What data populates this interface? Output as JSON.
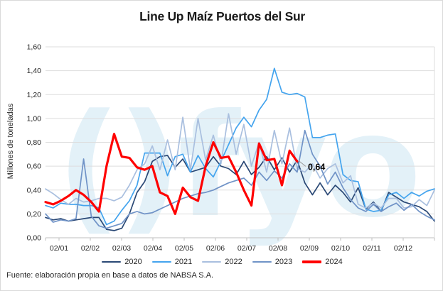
{
  "title": "Line Up Maíz Puertos del Sur",
  "footer": "Fuente: elaboración propia en base a datos de NABSA S.A.",
  "watermark_text": "()fyo",
  "annotation": {
    "text": "0,64",
    "series": "2024"
  },
  "colors": {
    "grid": "#dddddd",
    "axis": "#bfbfbf",
    "text": "#262626",
    "title_text": "#1a1a1a",
    "watermark": "#e3f1f8",
    "annotation_text": "#000000",
    "leader_line": "#999999"
  },
  "chart_data": {
    "type": "line",
    "title": "Line Up Maíz Puertos del Sur",
    "xlabel": "",
    "ylabel": "Millones de toneladas",
    "ylim": [
      0,
      1.6
    ],
    "grid": true,
    "legend_position": "bottom",
    "x_unit": "weekly points, labelled monthly (day 02 of each month)",
    "x_tick_labels": [
      "02/01",
      "02/02",
      "02/03",
      "02/04",
      "02/05",
      "02/06",
      "02/07",
      "02/08",
      "02/09",
      "02/10",
      "02/11",
      "02/12"
    ],
    "y_tick_labels": [
      "0,00",
      "0,20",
      "0,40",
      "0,60",
      "0,80",
      "1,00",
      "1,20",
      "1,40",
      "1,60"
    ],
    "y_tick_values": [
      0,
      0.2,
      0.4,
      0.6,
      0.8,
      1.0,
      1.2,
      1.4,
      1.6
    ],
    "weeks_per_year": 52,
    "series": [
      {
        "name": "2020",
        "color": "#2a4875",
        "width": 1.7,
        "values": [
          0.17,
          0.15,
          0.16,
          0.14,
          0.15,
          0.16,
          0.17,
          0.17,
          0.07,
          0.06,
          0.08,
          0.2,
          0.38,
          0.47,
          0.64,
          0.68,
          0.69,
          0.59,
          0.66,
          0.55,
          0.57,
          0.59,
          0.68,
          0.6,
          0.58,
          0.53,
          0.64,
          0.53,
          0.59,
          0.68,
          0.57,
          0.67,
          0.55,
          0.65,
          0.46,
          0.36,
          0.46,
          0.36,
          0.44,
          0.38,
          0.3,
          0.42,
          0.24,
          0.3,
          0.22,
          0.38,
          0.34,
          0.3,
          0.28,
          0.26,
          0.22,
          0.14
        ]
      },
      {
        "name": "2021",
        "color": "#44a4ee",
        "width": 1.7,
        "values": [
          0.27,
          0.25,
          0.29,
          0.28,
          0.28,
          0.27,
          0.27,
          0.25,
          0.11,
          0.14,
          0.23,
          0.31,
          0.44,
          0.71,
          0.71,
          0.71,
          0.52,
          0.68,
          0.7,
          0.55,
          0.69,
          0.58,
          0.51,
          0.64,
          0.78,
          0.92,
          1.01,
          0.93,
          1.07,
          1.16,
          1.42,
          1.22,
          1.2,
          1.21,
          1.18,
          0.84,
          0.84,
          0.86,
          0.87,
          0.53,
          0.48,
          0.47,
          0.24,
          0.22,
          0.23,
          0.36,
          0.38,
          0.33,
          0.38,
          0.35,
          0.39,
          0.41
        ]
      },
      {
        "name": "2022",
        "color": "#a9bfdf",
        "width": 1.7,
        "values": [
          0.41,
          0.37,
          0.32,
          0.28,
          0.33,
          0.3,
          0.31,
          0.33,
          0.33,
          0.31,
          0.34,
          0.44,
          0.57,
          0.62,
          0.77,
          0.57,
          0.82,
          0.57,
          1.01,
          0.57,
          1.0,
          0.65,
          0.86,
          0.62,
          1.04,
          0.7,
          0.95,
          0.6,
          0.8,
          0.55,
          0.9,
          0.62,
          0.92,
          0.58,
          0.55,
          0.62,
          0.5,
          0.58,
          0.62,
          0.46,
          0.52,
          0.28,
          0.25,
          0.29,
          0.25,
          0.33,
          0.33,
          0.25,
          0.26,
          0.32,
          0.27,
          0.4
        ]
      },
      {
        "name": "2023",
        "color": "#7093c7",
        "width": 1.7,
        "values": [
          0.2,
          0.13,
          0.15,
          0.14,
          0.16,
          0.66,
          0.18,
          0.1,
          0.08,
          0.1,
          0.12,
          0.2,
          0.22,
          0.2,
          0.21,
          0.24,
          0.27,
          0.3,
          0.33,
          0.35,
          0.37,
          0.38,
          0.4,
          0.43,
          0.46,
          0.48,
          0.5,
          0.44,
          0.55,
          0.48,
          0.56,
          0.5,
          0.62,
          0.55,
          0.9,
          0.7,
          0.6,
          0.45,
          0.55,
          0.42,
          0.32,
          0.25,
          0.22,
          0.28,
          0.22,
          0.26,
          0.29,
          0.23,
          0.28,
          0.22,
          0.18,
          0.15
        ]
      },
      {
        "name": "2024",
        "color": "#ff0000",
        "width": 3.2,
        "values": [
          0.3,
          0.28,
          0.31,
          0.35,
          0.4,
          0.36,
          0.3,
          0.22,
          0.6,
          0.87,
          0.68,
          0.67,
          0.59,
          0.57,
          0.6,
          0.38,
          0.35,
          0.2,
          0.42,
          0.34,
          0.31,
          0.6,
          0.8,
          0.67,
          0.68,
          0.55,
          0.4,
          0.27,
          0.79,
          0.65,
          0.66,
          0.44,
          0.73,
          0.64
        ]
      }
    ]
  }
}
